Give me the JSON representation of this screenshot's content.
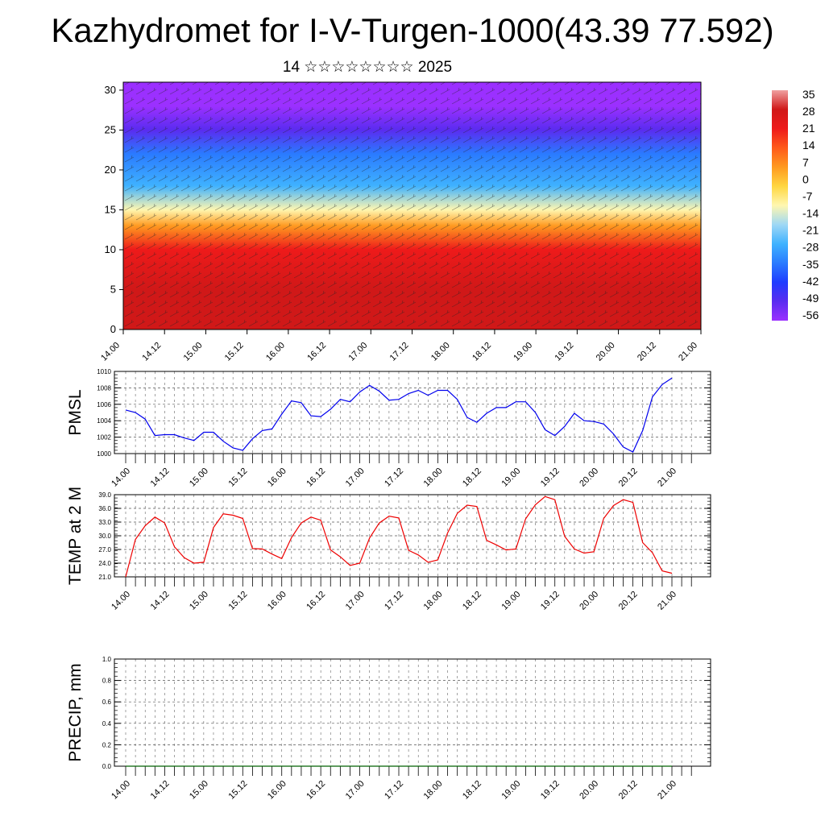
{
  "title": "Kazhydromet for I-V-Turgen-1000(43.39 77.592)",
  "subtitle": "14 ☆☆☆☆☆☆☆☆ 2025",
  "colors": {
    "pmsl_line": "#0000ee",
    "temp_line": "#ee0000",
    "precip_line": "#006000",
    "colorbar": [
      "#9b30ff",
      "#5a2cf0",
      "#1f3cff",
      "#2a7bff",
      "#3fb2ff",
      "#9fd8f5",
      "#fff7b0",
      "#ffd640",
      "#ff9a20",
      "#ff5a1a",
      "#ee1a1a",
      "#d01818",
      "#f0a0a0"
    ]
  },
  "chart_data": [
    {
      "type": "heatmap",
      "description_ref": "wind barbs over shaded field",
      "y_ticks": [
        "0",
        "5",
        "10",
        "15",
        "20",
        "25",
        "30"
      ],
      "ylim": [
        0,
        31
      ],
      "x_ticks": [
        "14.00",
        "14.12",
        "15.00",
        "15.12",
        "16.00",
        "16.12",
        "17.00",
        "17.12",
        "18.00",
        "18.12",
        "19.00",
        "19.12",
        "20.00",
        "20.12",
        "21.00"
      ],
      "colorbar": {
        "labels": [
          "35",
          "28",
          "21",
          "14",
          "7",
          "0",
          "-7",
          "-14",
          "-21",
          "-28",
          "-35",
          "-42",
          "-49",
          "-56"
        ],
        "range": [
          -60,
          35
        ]
      },
      "layers": [
        {
          "y": 0,
          "value": 30
        },
        {
          "y": 5,
          "value": 24
        },
        {
          "y": 10,
          "value": 18
        },
        {
          "y": 13,
          "value": 5
        },
        {
          "y": 15,
          "value": -10
        },
        {
          "y": 18,
          "value": -28
        },
        {
          "y": 22,
          "value": -40
        },
        {
          "y": 25,
          "value": -52
        },
        {
          "y": 28,
          "value": -60
        },
        {
          "y": 31,
          "value": -62
        }
      ]
    },
    {
      "type": "line",
      "ylabel": "PMSL",
      "ylim": [
        1000,
        1010
      ],
      "y_ticks": [
        "1010",
        "1008",
        "1006",
        "1004",
        "1002",
        "1000"
      ],
      "x_ticks": [
        "14.00",
        "14.12",
        "15.00",
        "15.12",
        "16.00",
        "16.12",
        "17.00",
        "17.12",
        "18.00",
        "18.12",
        "19.00",
        "19.12",
        "20.00",
        "20.12",
        "21.00"
      ],
      "series": [
        {
          "values": [
            1005.3,
            1005.0,
            1004.2,
            1002.2,
            1002.3,
            1002.3,
            1001.9,
            1001.6,
            1002.6,
            1002.6,
            1001.5,
            1000.7,
            1000.4,
            1001.8,
            1002.8,
            1003.0,
            1004.8,
            1006.4,
            1006.2,
            1004.6,
            1004.5,
            1005.4,
            1006.6,
            1006.3,
            1007.5,
            1008.3,
            1007.6,
            1006.5,
            1006.6,
            1007.3,
            1007.7,
            1007.1,
            1007.7,
            1007.7,
            1006.6,
            1004.4,
            1003.8,
            1004.9,
            1005.6,
            1005.6,
            1006.3,
            1006.3,
            1005.0,
            1002.9,
            1002.2,
            1003.3,
            1004.9,
            1004.0,
            1003.9,
            1003.6,
            1002.4,
            1000.8,
            1000.2,
            1002.8,
            1006.9,
            1008.4,
            1009.2
          ]
        }
      ]
    },
    {
      "type": "line",
      "ylabel": "TEMP at 2 M",
      "ylim": [
        21,
        39
      ],
      "y_ticks": [
        "39.0",
        "36.0",
        "33.0",
        "30.0",
        "27.0",
        "24.0",
        "21.0"
      ],
      "x_ticks": [
        "14.00",
        "14.12",
        "15.00",
        "15.12",
        "16.00",
        "16.12",
        "17.00",
        "17.12",
        "18.00",
        "18.12",
        "19.00",
        "19.12",
        "20.00",
        "20.12",
        "21.00"
      ],
      "series": [
        {
          "values": [
            21.0,
            29.2,
            32.2,
            34.1,
            32.8,
            27.6,
            25.2,
            24.0,
            24.2,
            31.8,
            34.8,
            34.5,
            33.8,
            27.2,
            27.1,
            26.0,
            25.0,
            29.6,
            32.8,
            34.1,
            33.4,
            26.9,
            25.4,
            23.5,
            24.0,
            29.5,
            32.8,
            34.3,
            33.9,
            26.8,
            25.8,
            24.2,
            24.7,
            30.6,
            34.9,
            36.7,
            36.4,
            29.0,
            28.0,
            26.9,
            27.1,
            33.7,
            36.8,
            38.6,
            37.9,
            29.9,
            27.1,
            26.2,
            26.5,
            33.8,
            36.6,
            37.9,
            37.3,
            28.5,
            26.3,
            22.3,
            21.8
          ]
        }
      ]
    },
    {
      "type": "line",
      "ylabel": "PRECIP, mm",
      "ylim": [
        0,
        1
      ],
      "y_ticks": [
        "1.0",
        "0.8",
        "0.6",
        "0.4",
        "0.2",
        "0.0"
      ],
      "x_ticks": [
        "14.00",
        "14.12",
        "15.00",
        "15.12",
        "16.00",
        "16.12",
        "17.00",
        "17.12",
        "18.00",
        "18.12",
        "19.00",
        "19.12",
        "20.00",
        "20.12",
        "21.00"
      ],
      "series": [
        {
          "values": [
            0,
            0,
            0,
            0,
            0,
            0,
            0,
            0,
            0,
            0,
            0,
            0,
            0,
            0,
            0
          ]
        }
      ]
    }
  ]
}
